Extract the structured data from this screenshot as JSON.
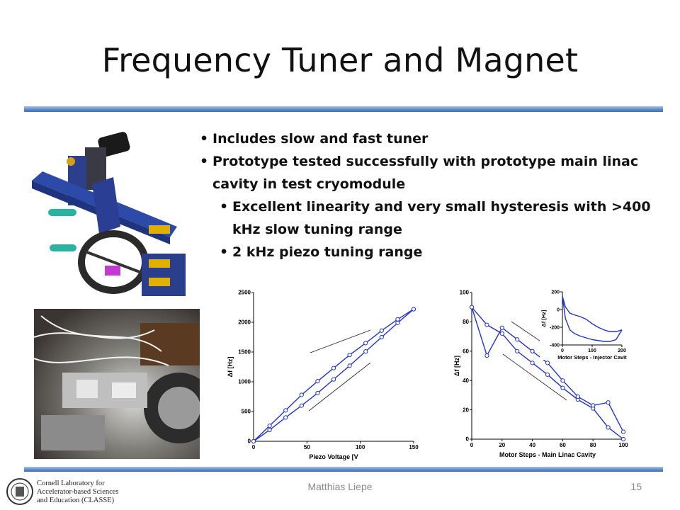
{
  "slide": {
    "title": "Frequency Tuner and Magnet",
    "bullets": [
      {
        "text": "Includes slow and fast tuner",
        "level": 1
      },
      {
        "text": "Prototype tested successfully with prototype main linac cavity in test cryomodule",
        "level": 1
      },
      {
        "text": "Excellent linearity and very small hysteresis with >400 kHz slow tuning range",
        "level": 2
      },
      {
        "text": "2 kHz piezo tuning range",
        "level": 2
      }
    ],
    "footer": {
      "presenter": "Matthias Liepe",
      "page_number": "15",
      "logo_lines": [
        "Cornell Laboratory for",
        "Accelerator-based Sciences",
        "and Education (CLASSE)"
      ]
    }
  },
  "colors": {
    "accent_bar": "#4f7fc0",
    "plot_line": "#2233cc"
  },
  "chart_data": [
    {
      "type": "line",
      "xlabel": "Piezo Voltage [V",
      "ylabel": "Δf [Hz]",
      "xlim": [
        0,
        150
      ],
      "ylim": [
        0,
        2500
      ],
      "xticks": [
        "0",
        "50",
        "100",
        "150"
      ],
      "yticks": [
        "0",
        "500",
        "1000",
        "1500",
        "2000",
        "2500"
      ],
      "series": [
        {
          "x": [
            0,
            15,
            30,
            45,
            60,
            75,
            90,
            105,
            120,
            135,
            150
          ],
          "y": [
            0,
            260,
            520,
            780,
            1010,
            1230,
            1450,
            1650,
            1860,
            2050,
            2220
          ]
        },
        {
          "x": [
            0,
            15,
            30,
            45,
            60,
            75,
            90,
            105,
            120,
            135,
            150
          ],
          "y": [
            0,
            190,
            400,
            600,
            810,
            1040,
            1270,
            1510,
            1750,
            1990,
            2220
          ]
        }
      ]
    },
    {
      "type": "line",
      "xlabel": "Motor Steps - Main Linac Cavity",
      "ylabel": "Δf [Hz]",
      "xlim": [
        0,
        100
      ],
      "ylim": [
        0,
        100
      ],
      "xticks": [
        "0",
        "20",
        "40",
        "60",
        "80",
        "100"
      ],
      "yticks": [
        "0",
        "20",
        "40",
        "60",
        "80",
        "100"
      ],
      "series": [
        {
          "x": [
            0,
            10,
            20,
            30,
            40,
            50,
            60,
            70,
            80,
            90,
            100
          ],
          "y": [
            90,
            78,
            72,
            60,
            52,
            44,
            35,
            27,
            21,
            8,
            0
          ]
        },
        {
          "x": [
            0,
            10,
            20,
            30,
            40,
            50,
            60,
            70,
            80,
            90,
            100
          ],
          "y": [
            90,
            57,
            76,
            68,
            60,
            52,
            40,
            29,
            23,
            25,
            5
          ]
        }
      ],
      "inset": {
        "xlabel": "Motor Steps - Injector Cavit",
        "ylabel": "Δf [Hz]",
        "xlim": [
          0,
          200
        ],
        "ylim": [
          -400,
          200
        ],
        "xticks": [
          "0",
          "100",
          "200"
        ],
        "yticks": [
          "200",
          "0",
          "-200",
          "-400"
        ],
        "series": [
          {
            "x": [
              0,
              10,
              25,
              40,
              60,
              80,
              100,
              120,
              140,
              160,
              180,
              200
            ],
            "y": [
              150,
              30,
              -40,
              -60,
              -80,
              -110,
              -160,
              -200,
              -230,
              -250,
              -250,
              -230
            ]
          },
          {
            "x": [
              0,
              10,
              25,
              40,
              60,
              80,
              100,
              120,
              140,
              160,
              180,
              200
            ],
            "y": [
              150,
              -100,
              -230,
              -270,
              -300,
              -320,
              -340,
              -350,
              -360,
              -360,
              -340,
              -230
            ]
          }
        ]
      }
    }
  ]
}
